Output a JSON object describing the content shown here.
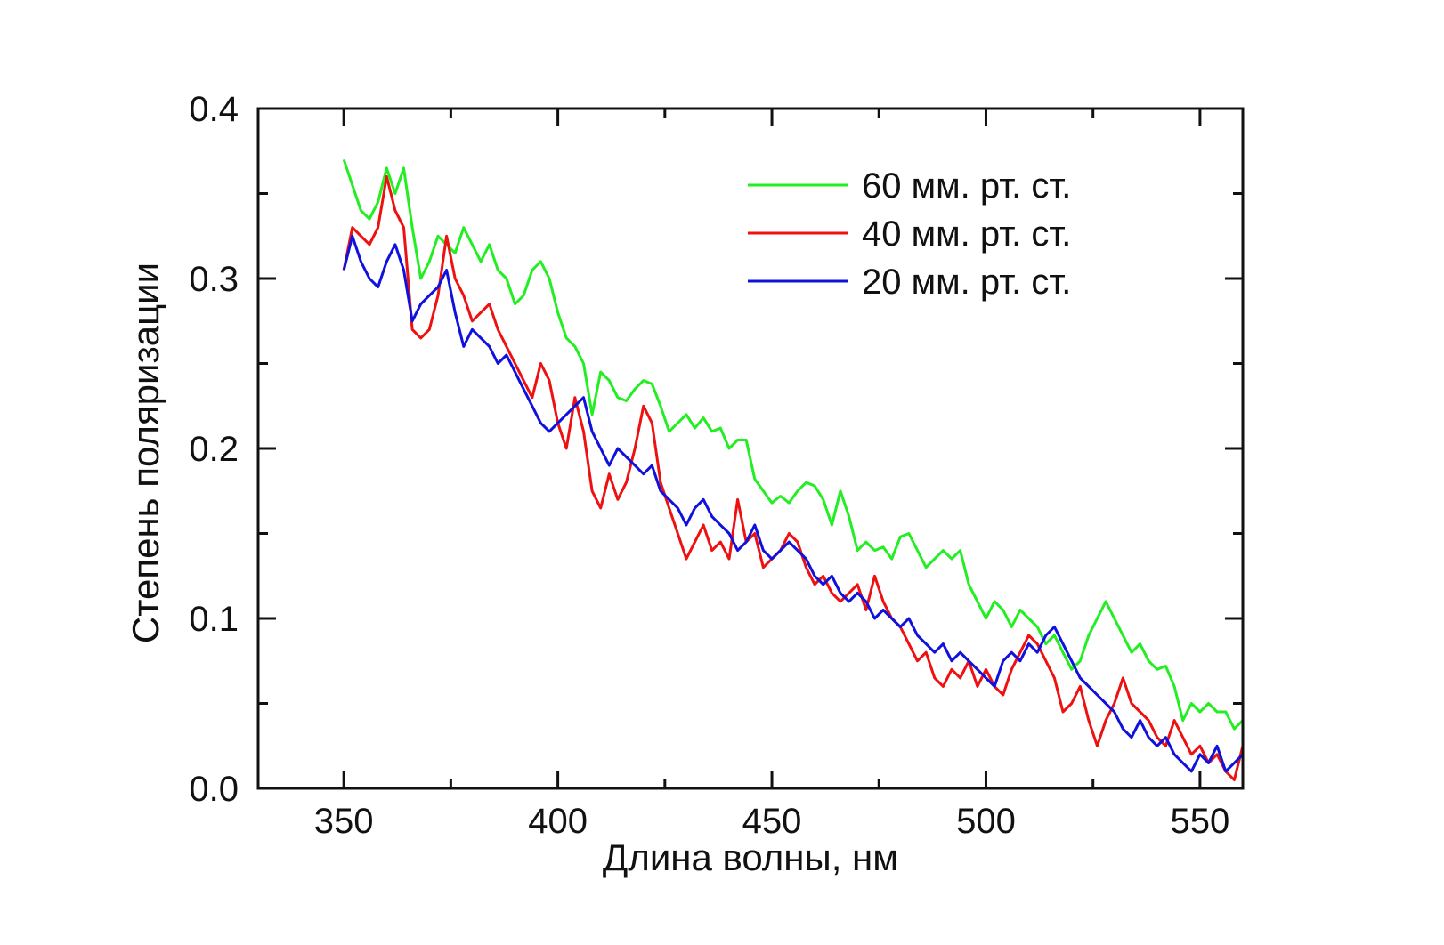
{
  "chart_data": {
    "type": "line",
    "xlabel": "Длина волны, нм",
    "ylabel": "Степень поляризации",
    "xlim": [
      330,
      560
    ],
    "ylim": [
      0,
      0.4
    ],
    "x_ticks": [
      350,
      400,
      450,
      500,
      550
    ],
    "y_ticks": [
      0.0,
      0.1,
      0.2,
      0.3,
      0.4
    ],
    "x_tick_labels": [
      "350",
      "400",
      "450",
      "500",
      "550"
    ],
    "y_tick_labels": [
      "0.0",
      "0.1",
      "0.2",
      "0.3",
      "0.4"
    ],
    "legend_position": "top-right",
    "grid": false,
    "series": [
      {
        "name": "60 мм. рт. ст.",
        "color": "#22ee22",
        "x": [
          350,
          352,
          354,
          356,
          358,
          360,
          362,
          364,
          366,
          368,
          370,
          372,
          374,
          376,
          378,
          380,
          382,
          384,
          386,
          388,
          390,
          392,
          394,
          396,
          398,
          400,
          402,
          404,
          406,
          408,
          410,
          412,
          414,
          416,
          418,
          420,
          422,
          424,
          426,
          428,
          430,
          432,
          434,
          436,
          438,
          440,
          442,
          444,
          446,
          448,
          450,
          452,
          454,
          456,
          458,
          460,
          462,
          464,
          466,
          468,
          470,
          472,
          474,
          476,
          478,
          480,
          482,
          484,
          486,
          488,
          490,
          492,
          494,
          496,
          498,
          500,
          502,
          504,
          506,
          508,
          510,
          512,
          514,
          516,
          518,
          520,
          522,
          524,
          526,
          528,
          530,
          532,
          534,
          536,
          538,
          540,
          542,
          544,
          546,
          548,
          550,
          552,
          554,
          556,
          558,
          560
        ],
        "y": [
          0.37,
          0.355,
          0.34,
          0.335,
          0.345,
          0.365,
          0.35,
          0.365,
          0.33,
          0.3,
          0.31,
          0.325,
          0.32,
          0.315,
          0.33,
          0.32,
          0.31,
          0.32,
          0.305,
          0.3,
          0.285,
          0.29,
          0.305,
          0.31,
          0.3,
          0.28,
          0.265,
          0.26,
          0.25,
          0.22,
          0.245,
          0.24,
          0.23,
          0.228,
          0.235,
          0.24,
          0.238,
          0.225,
          0.21,
          0.215,
          0.22,
          0.212,
          0.218,
          0.21,
          0.212,
          0.2,
          0.205,
          0.205,
          0.182,
          0.175,
          0.168,
          0.172,
          0.168,
          0.175,
          0.18,
          0.178,
          0.17,
          0.155,
          0.175,
          0.16,
          0.14,
          0.145,
          0.14,
          0.142,
          0.135,
          0.148,
          0.15,
          0.14,
          0.13,
          0.135,
          0.14,
          0.135,
          0.14,
          0.12,
          0.11,
          0.1,
          0.11,
          0.105,
          0.095,
          0.105,
          0.1,
          0.095,
          0.085,
          0.09,
          0.08,
          0.07,
          0.075,
          0.09,
          0.1,
          0.11,
          0.1,
          0.09,
          0.08,
          0.085,
          0.075,
          0.07,
          0.072,
          0.06,
          0.04,
          0.05,
          0.045,
          0.05,
          0.045,
          0.045,
          0.035,
          0.04
        ]
      },
      {
        "name": "40 мм. рт. ст.",
        "color": "#ee1111",
        "x": [
          350,
          352,
          354,
          356,
          358,
          360,
          362,
          364,
          366,
          368,
          370,
          372,
          374,
          376,
          378,
          380,
          382,
          384,
          386,
          388,
          390,
          392,
          394,
          396,
          398,
          400,
          402,
          404,
          406,
          408,
          410,
          412,
          414,
          416,
          418,
          420,
          422,
          424,
          426,
          428,
          430,
          432,
          434,
          436,
          438,
          440,
          442,
          444,
          446,
          448,
          450,
          452,
          454,
          456,
          458,
          460,
          462,
          464,
          466,
          468,
          470,
          472,
          474,
          476,
          478,
          480,
          482,
          484,
          486,
          488,
          490,
          492,
          494,
          496,
          498,
          500,
          502,
          504,
          506,
          508,
          510,
          512,
          514,
          516,
          518,
          520,
          522,
          524,
          526,
          528,
          530,
          532,
          534,
          536,
          538,
          540,
          542,
          544,
          546,
          548,
          550,
          552,
          554,
          556,
          558,
          560
        ],
        "y": [
          0.305,
          0.33,
          0.325,
          0.32,
          0.33,
          0.36,
          0.34,
          0.33,
          0.27,
          0.265,
          0.27,
          0.29,
          0.325,
          0.3,
          0.29,
          0.275,
          0.28,
          0.285,
          0.27,
          0.26,
          0.25,
          0.24,
          0.23,
          0.25,
          0.24,
          0.215,
          0.2,
          0.23,
          0.21,
          0.175,
          0.165,
          0.185,
          0.17,
          0.18,
          0.2,
          0.225,
          0.215,
          0.18,
          0.165,
          0.15,
          0.135,
          0.145,
          0.155,
          0.14,
          0.145,
          0.135,
          0.17,
          0.145,
          0.15,
          0.13,
          0.135,
          0.14,
          0.15,
          0.145,
          0.13,
          0.12,
          0.125,
          0.115,
          0.11,
          0.115,
          0.12,
          0.105,
          0.125,
          0.11,
          0.1,
          0.095,
          0.085,
          0.075,
          0.08,
          0.065,
          0.06,
          0.07,
          0.065,
          0.075,
          0.06,
          0.07,
          0.06,
          0.055,
          0.07,
          0.08,
          0.09,
          0.085,
          0.075,
          0.065,
          0.045,
          0.05,
          0.06,
          0.04,
          0.025,
          0.04,
          0.05,
          0.065,
          0.05,
          0.045,
          0.04,
          0.03,
          0.025,
          0.04,
          0.03,
          0.02,
          0.025,
          0.015,
          0.02,
          0.01,
          0.005,
          0.025
        ]
      },
      {
        "name": "20 мм. рт. ст.",
        "color": "#1111dd",
        "x": [
          350,
          352,
          354,
          356,
          358,
          360,
          362,
          364,
          366,
          368,
          370,
          372,
          374,
          376,
          378,
          380,
          382,
          384,
          386,
          388,
          390,
          392,
          394,
          396,
          398,
          400,
          402,
          404,
          406,
          408,
          410,
          412,
          414,
          416,
          418,
          420,
          422,
          424,
          426,
          428,
          430,
          432,
          434,
          436,
          438,
          440,
          442,
          444,
          446,
          448,
          450,
          452,
          454,
          456,
          458,
          460,
          462,
          464,
          466,
          468,
          470,
          472,
          474,
          476,
          478,
          480,
          482,
          484,
          486,
          488,
          490,
          492,
          494,
          496,
          498,
          500,
          502,
          504,
          506,
          508,
          510,
          512,
          514,
          516,
          518,
          520,
          522,
          524,
          526,
          528,
          530,
          532,
          534,
          536,
          538,
          540,
          542,
          544,
          546,
          548,
          550,
          552,
          554,
          556,
          558,
          560
        ],
        "y": [
          0.305,
          0.325,
          0.31,
          0.3,
          0.295,
          0.31,
          0.32,
          0.305,
          0.275,
          0.285,
          0.29,
          0.295,
          0.305,
          0.28,
          0.26,
          0.27,
          0.265,
          0.26,
          0.25,
          0.255,
          0.245,
          0.235,
          0.225,
          0.215,
          0.21,
          0.215,
          0.22,
          0.225,
          0.23,
          0.21,
          0.2,
          0.19,
          0.2,
          0.195,
          0.19,
          0.185,
          0.19,
          0.175,
          0.17,
          0.165,
          0.155,
          0.165,
          0.17,
          0.16,
          0.155,
          0.15,
          0.14,
          0.145,
          0.155,
          0.14,
          0.135,
          0.14,
          0.145,
          0.14,
          0.135,
          0.125,
          0.12,
          0.125,
          0.115,
          0.11,
          0.115,
          0.11,
          0.1,
          0.105,
          0.1,
          0.095,
          0.1,
          0.09,
          0.085,
          0.08,
          0.085,
          0.075,
          0.08,
          0.075,
          0.07,
          0.065,
          0.06,
          0.075,
          0.08,
          0.075,
          0.085,
          0.08,
          0.09,
          0.095,
          0.085,
          0.075,
          0.065,
          0.06,
          0.055,
          0.05,
          0.045,
          0.035,
          0.03,
          0.04,
          0.03,
          0.025,
          0.03,
          0.02,
          0.015,
          0.01,
          0.02,
          0.015,
          0.025,
          0.01,
          0.015,
          0.02
        ]
      }
    ]
  }
}
